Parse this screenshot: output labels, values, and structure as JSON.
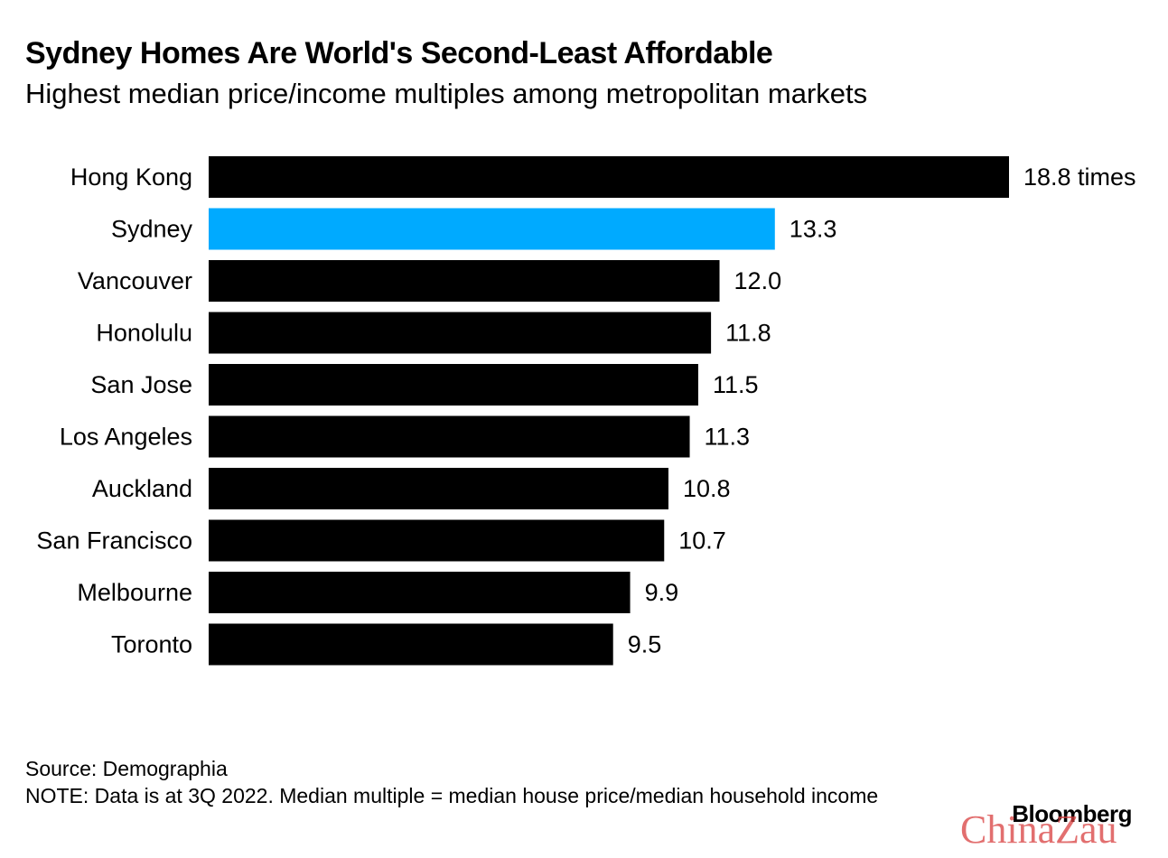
{
  "header": {
    "title": "Sydney Homes Are World's Second-Least Affordable",
    "subtitle": "Highest median price/income multiples among metropolitan markets"
  },
  "chart_data": {
    "type": "bar",
    "orientation": "horizontal",
    "title": "Sydney Homes Are World's Second-Least Affordable",
    "subtitle": "Highest median price/income multiples among metropolitan markets",
    "categories": [
      "Hong Kong",
      "Sydney",
      "Vancouver",
      "Honolulu",
      "San Jose",
      "Los Angeles",
      "Auckland",
      "San Francisco",
      "Melbourne",
      "Toronto"
    ],
    "values": [
      18.8,
      13.3,
      12.0,
      11.8,
      11.5,
      11.3,
      10.8,
      10.7,
      9.9,
      9.5
    ],
    "value_labels": [
      "18.8 times",
      "13.3",
      "12.0",
      "11.8",
      "11.5",
      "11.3",
      "10.8",
      "10.7",
      "9.9",
      "9.5"
    ],
    "highlight_category": "Sydney",
    "colors": {
      "default": "#000000",
      "highlight": "#00aaff"
    },
    "xlim": [
      0,
      18.8
    ],
    "grid": false,
    "legend": "none"
  },
  "footer": {
    "source": "Source: Demographia",
    "note": "NOTE: Data is at 3Q 2022. Median multiple = median house price/median household income",
    "logo": "Bloomberg",
    "watermark": "ChinaZau"
  }
}
